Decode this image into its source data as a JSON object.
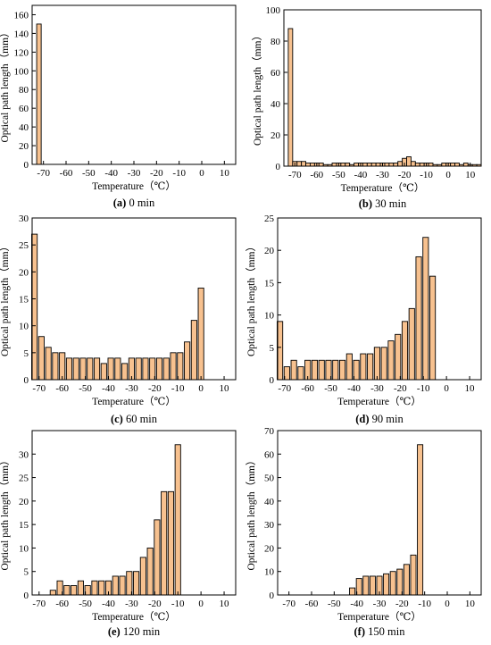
{
  "chart_data": [
    {
      "type": "bar",
      "caption_letter": "(a)",
      "caption_text": " 0 min",
      "xlabel": "Temperature（℃）",
      "ylabel": "Optical path length（mm）",
      "xlim": [
        -75,
        15
      ],
      "ylim": [
        0,
        170
      ],
      "xticks": [
        -70,
        -60,
        -50,
        -40,
        -30,
        -20,
        -10,
        0,
        10
      ],
      "yticks": [
        0,
        20,
        40,
        60,
        80,
        100,
        120,
        140,
        160
      ],
      "bar_color": "#f7c18f",
      "x": [
        -72
      ],
      "values": [
        150
      ]
    },
    {
      "type": "bar",
      "caption_letter": "(b)",
      "caption_text": " 30 min",
      "xlabel": "Temperature（℃）",
      "ylabel": "Optical path length（mm）",
      "xlim": [
        -75,
        15
      ],
      "ylim": [
        0,
        100
      ],
      "xticks": [
        -70,
        -60,
        -50,
        -40,
        -30,
        -20,
        -10,
        0,
        10
      ],
      "yticks": [
        0,
        20,
        40,
        60,
        80,
        100
      ],
      "bar_color": "#f7c18f",
      "x": [
        -72,
        -70,
        -68,
        -66,
        -64,
        -62,
        -60,
        -58,
        -56,
        -54,
        -52,
        -50,
        -48,
        -46,
        -44,
        -42,
        -40,
        -38,
        -36,
        -34,
        -32,
        -30,
        -28,
        -26,
        -24,
        -22,
        -20,
        -18,
        -16,
        -14,
        -12,
        -10,
        -8,
        -6,
        -4,
        -2,
        0,
        2,
        4,
        6,
        8,
        10,
        12,
        14
      ],
      "values": [
        88,
        3,
        3,
        3,
        2,
        2,
        2,
        2,
        1,
        1,
        2,
        2,
        2,
        2,
        1,
        2,
        2,
        2,
        2,
        2,
        2,
        2,
        2,
        2,
        2,
        3,
        5,
        6,
        3,
        2,
        2,
        2,
        2,
        1,
        1,
        2,
        2,
        2,
        2,
        1,
        2,
        1,
        1,
        1
      ]
    },
    {
      "type": "bar",
      "caption_letter": "(c)",
      "caption_text": " 60 min",
      "xlabel": "Temperature（℃）",
      "ylabel": "Optical path length（mm）",
      "xlim": [
        -73,
        15
      ],
      "ylim": [
        0,
        30
      ],
      "xticks": [
        -70,
        -60,
        -50,
        -40,
        -30,
        -20,
        -10,
        0,
        10
      ],
      "yticks": [
        0,
        5,
        10,
        15,
        20,
        25,
        30
      ],
      "bar_color": "#f7c18f",
      "x": [
        -72,
        -69,
        -66,
        -63,
        -60,
        -57,
        -54,
        -51,
        -48,
        -45,
        -42,
        -39,
        -36,
        -33,
        -30,
        -27,
        -24,
        -21,
        -18,
        -15,
        -12,
        -9,
        -6,
        -3,
        0
      ],
      "values": [
        27,
        8,
        6,
        5,
        5,
        4,
        4,
        4,
        4,
        4,
        3,
        4,
        4,
        3,
        4,
        4,
        4,
        4,
        4,
        4,
        5,
        5,
        7,
        11,
        17
      ]
    },
    {
      "type": "bar",
      "caption_letter": "(d)",
      "caption_text": " 90 min",
      "xlabel": "Temperature（℃）",
      "ylabel": "Optical path length（mm）",
      "xlim": [
        -73,
        15
      ],
      "ylim": [
        0,
        25
      ],
      "xticks": [
        -70,
        -60,
        -50,
        -40,
        -30,
        -20,
        -10,
        0,
        10
      ],
      "yticks": [
        0,
        5,
        10,
        15,
        20,
        25
      ],
      "bar_color": "#f7c18f",
      "x": [
        -72,
        -69,
        -66,
        -63,
        -60,
        -57,
        -54,
        -51,
        -48,
        -45,
        -42,
        -39,
        -36,
        -33,
        -30,
        -27,
        -24,
        -21,
        -18,
        -15,
        -12,
        -9,
        -6
      ],
      "values": [
        9,
        2,
        3,
        2,
        3,
        3,
        3,
        3,
        3,
        3,
        4,
        3,
        4,
        4,
        5,
        5,
        6,
        7,
        9,
        11,
        19,
        22,
        16
      ]
    },
    {
      "type": "bar",
      "caption_letter": "(e)",
      "caption_text": " 120 min",
      "xlabel": "Temperature（℃）",
      "ylabel": "Optical path length（mm）",
      "xlim": [
        -73,
        15
      ],
      "ylim": [
        0,
        35
      ],
      "xticks": [
        -70,
        -60,
        -50,
        -40,
        -30,
        -20,
        -10,
        0,
        10
      ],
      "yticks": [
        0,
        5,
        10,
        15,
        20,
        25,
        30
      ],
      "bar_color": "#f7c18f",
      "x": [
        -64,
        -61,
        -58,
        -55,
        -52,
        -49,
        -46,
        -43,
        -40,
        -37,
        -34,
        -31,
        -28,
        -25,
        -22,
        -19,
        -16,
        -13,
        -10
      ],
      "values": [
        1,
        3,
        2,
        2,
        3,
        2,
        3,
        3,
        3,
        4,
        4,
        5,
        5,
        8,
        10,
        16,
        22,
        22,
        32
      ]
    },
    {
      "type": "bar",
      "caption_letter": "(f)",
      "caption_text": " 150 min",
      "xlabel": "Temperature（℃）",
      "ylabel": "Optical path length（mm）",
      "xlim": [
        -75,
        15
      ],
      "ylim": [
        0,
        70
      ],
      "xticks": [
        -70,
        -60,
        -50,
        -40,
        -30,
        -20,
        -10,
        0,
        10
      ],
      "yticks": [
        0,
        10,
        20,
        30,
        40,
        50,
        60,
        70
      ],
      "bar_color": "#f7c18f",
      "x": [
        -42,
        -39,
        -36,
        -33,
        -30,
        -27,
        -24,
        -21,
        -18,
        -15,
        -12
      ],
      "values": [
        3,
        7,
        8,
        8,
        8,
        9,
        10,
        11,
        13,
        17,
        64
      ]
    }
  ]
}
